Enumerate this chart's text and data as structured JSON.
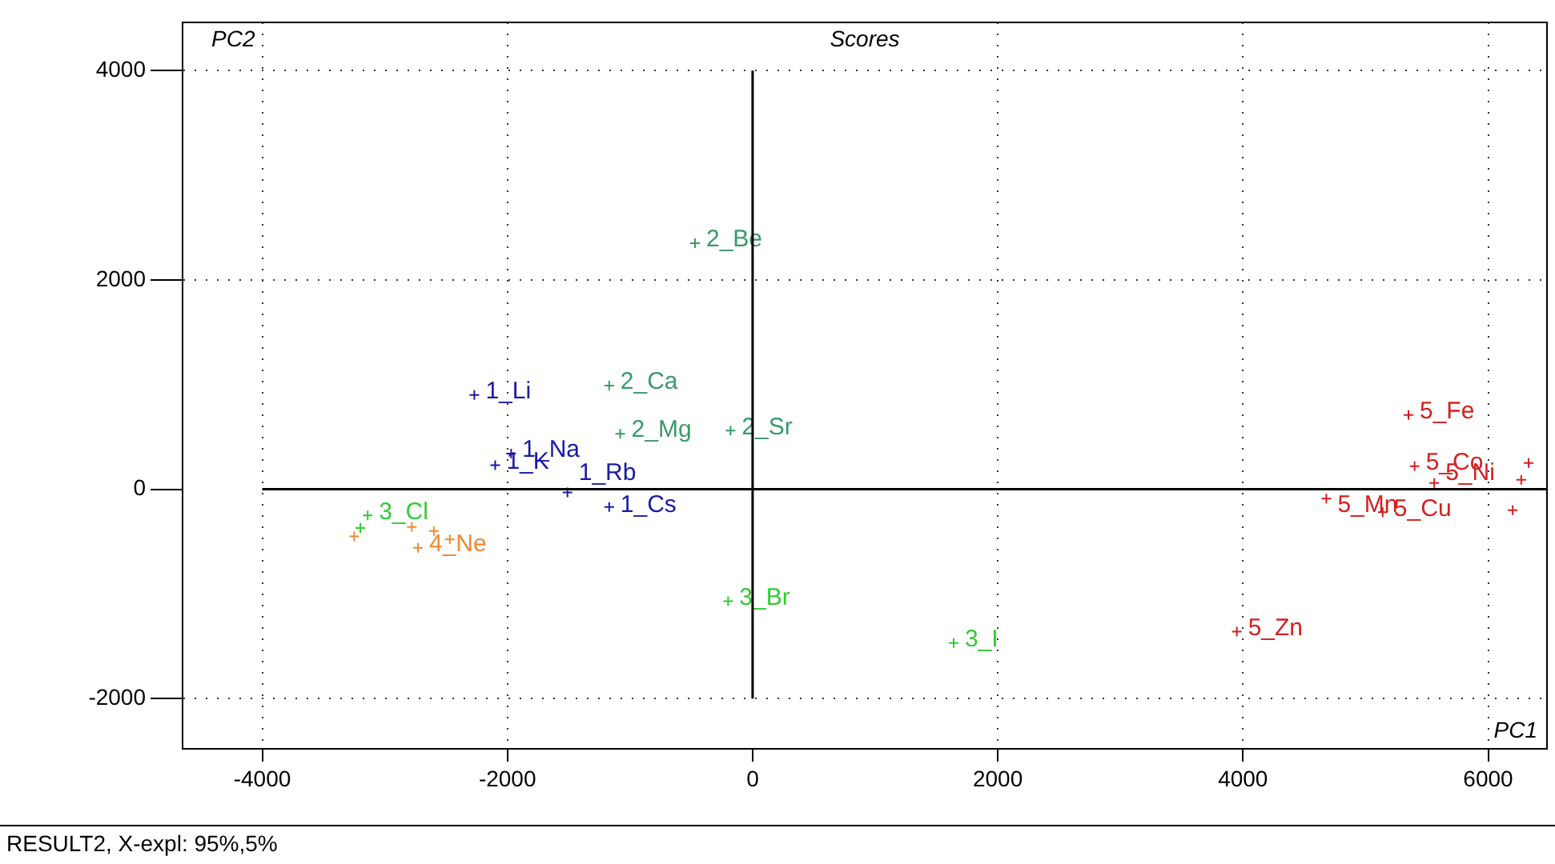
{
  "chart_data": {
    "type": "scatter",
    "title": "Scores",
    "xlabel": "PC1",
    "ylabel": "PC2",
    "annotations": [
      "RESULT2, X-expl: 95%,5%",
      {
        "text": "1_Li",
        "x": -2270,
        "y": 900
      },
      {
        "text": "1_K",
        "x": -2100,
        "y": 230
      },
      {
        "text": "1_Na",
        "x": -1970,
        "y": 340
      },
      {
        "text": "1_Rb",
        "x": -1510,
        "y": -30
      },
      {
        "text": "1_Cs",
        "x": -1170,
        "y": -170
      },
      {
        "text": "2_Be",
        "x": -470,
        "y": 2350
      },
      {
        "text": "2_Ca",
        "x": -1170,
        "y": 990
      },
      {
        "text": "2_Mg",
        "x": -1080,
        "y": 530
      },
      {
        "text": "2_Sr",
        "x": -180,
        "y": 560
      },
      {
        "text": "3_Br",
        "x": -200,
        "y": -1070
      },
      {
        "text": "3_I",
        "x": 1640,
        "y": -1470
      },
      {
        "text": "3_Cl",
        "x": -3140,
        "y": -250
      },
      {
        "text": "4_Ne",
        "x": -2730,
        "y": -560
      },
      {
        "text": "5_Fe",
        "x": 5350,
        "y": 710
      },
      {
        "text": "5_Co",
        "x": 5400,
        "y": 220
      },
      {
        "text": "5_Ni",
        "x": 5560,
        "y": 60
      },
      {
        "text": "5_Mn",
        "x": 4680,
        "y": -90
      },
      {
        "text": "5_Cu",
        "x": 5140,
        "y": -220
      },
      {
        "text": "5_Zn",
        "x": 3950,
        "y": -1360
      }
    ],
    "xlim": [
      -4650,
      6480
    ],
    "ylim": [
      -2480,
      4460
    ],
    "xticks": [
      -4000,
      -2000,
      0,
      2000,
      4000,
      6000
    ],
    "yticks": [
      -2000,
      0,
      2000,
      4000
    ],
    "grid": true,
    "line_style": "dotted",
    "marker": "cross",
    "legend": false,
    "series": [
      {
        "color": "#1a1aa6",
        "x": [
          -2270,
          -2100,
          -1970,
          -1510,
          -1170
        ],
        "values": [
          900,
          230,
          340,
          -30,
          -170
        ]
      },
      {
        "color": "#3a9a6a",
        "x": [
          -470,
          -1170,
          -1080,
          -180
        ],
        "values": [
          2350,
          990,
          530,
          560
        ]
      },
      {
        "color": "#33cc33",
        "x": [
          -200,
          1640,
          -3140,
          -3200
        ],
        "values": [
          -1070,
          -1470,
          -250,
          -370
        ]
      },
      {
        "color": "#f08a30",
        "x": [
          -3250,
          -2780,
          -2730,
          -2600,
          -2470
        ],
        "values": [
          -450,
          -360,
          -560,
          -400,
          -480
        ]
      },
      {
        "color": "#d42020",
        "x": [
          5350,
          5400,
          5560,
          4680,
          5140,
          3950,
          6330,
          6270,
          6200
        ],
        "values": [
          710,
          220,
          60,
          -90,
          -220,
          -1360,
          250,
          90,
          -200
        ]
      }
    ]
  }
}
